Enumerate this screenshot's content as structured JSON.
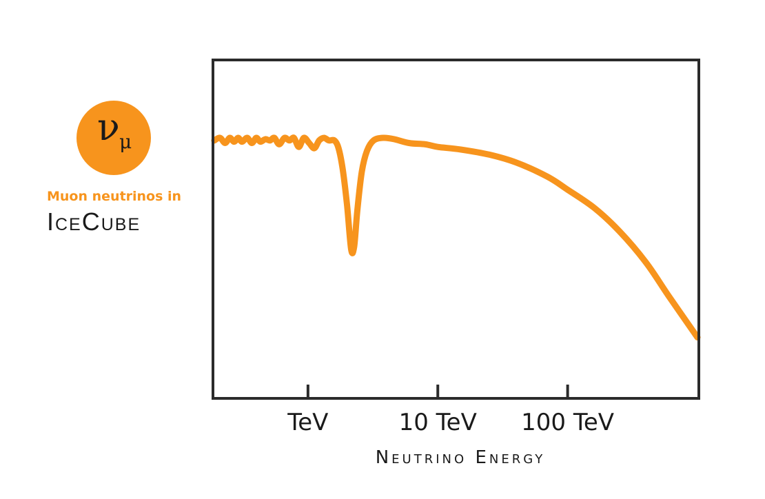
{
  "legend": {
    "symbol_main": "ν",
    "symbol_sub": "μ",
    "caption": "Muon neutrinos in",
    "brand": "IceCube"
  },
  "colors": {
    "accent": "#f7941d",
    "frame": "#2b2b2b",
    "text": "#1a1a1a"
  },
  "chart_data": {
    "type": "line",
    "title": "",
    "xlabel": "Neutrino Energy",
    "ylabel": "",
    "x_scale": "log",
    "x_unit": "TeV",
    "xlim": [
      0.19,
      1000
    ],
    "ylim": [
      0,
      1
    ],
    "grid": false,
    "ticks": [
      {
        "value": 1,
        "label": "TeV"
      },
      {
        "value": 10,
        "label": "10 TeV"
      },
      {
        "value": 100,
        "label": "100 TeV"
      }
    ],
    "series": [
      {
        "color": "#f7941d",
        "points": [
          [
            0.19,
            0.99
          ],
          [
            0.21,
            1.0
          ],
          [
            0.23,
            0.98
          ],
          [
            0.25,
            1.0
          ],
          [
            0.27,
            0.985
          ],
          [
            0.29,
            1.0
          ],
          [
            0.31,
            0.985
          ],
          [
            0.34,
            1.0
          ],
          [
            0.37,
            0.98
          ],
          [
            0.4,
            1.0
          ],
          [
            0.43,
            0.985
          ],
          [
            0.47,
            0.995
          ],
          [
            0.51,
            0.99
          ],
          [
            0.55,
            1.0
          ],
          [
            0.6,
            0.975
          ],
          [
            0.66,
            1.0
          ],
          [
            0.72,
            0.99
          ],
          [
            0.78,
            1.0
          ],
          [
            0.85,
            0.965
          ],
          [
            0.93,
            1.0
          ],
          [
            1.02,
            0.98
          ],
          [
            1.12,
            0.96
          ],
          [
            1.22,
            0.99
          ],
          [
            1.33,
            1.0
          ],
          [
            1.45,
            0.99
          ],
          [
            1.6,
            0.99
          ],
          [
            1.72,
            0.96
          ],
          [
            1.85,
            0.88
          ],
          [
            2.0,
            0.74
          ],
          [
            2.15,
            0.57
          ],
          [
            2.27,
            0.58
          ],
          [
            2.4,
            0.72
          ],
          [
            2.6,
            0.87
          ],
          [
            2.85,
            0.95
          ],
          [
            3.2,
            0.99
          ],
          [
            3.8,
            1.0
          ],
          [
            4.6,
            0.995
          ],
          [
            6.0,
            0.98
          ],
          [
            8.0,
            0.975
          ],
          [
            10.0,
            0.965
          ],
          [
            15.0,
            0.955
          ],
          [
            25.0,
            0.935
          ],
          [
            40.0,
            0.905
          ],
          [
            70.0,
            0.85
          ],
          [
            100.0,
            0.8
          ],
          [
            160.0,
            0.73
          ],
          [
            250.0,
            0.64
          ],
          [
            400.0,
            0.52
          ],
          [
            600.0,
            0.39
          ],
          [
            1000.0,
            0.23
          ]
        ]
      }
    ]
  }
}
